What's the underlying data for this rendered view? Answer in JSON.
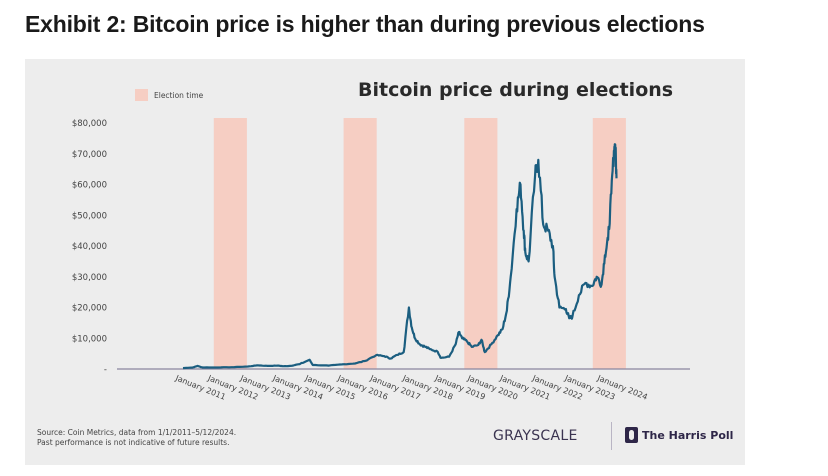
{
  "page": {
    "exhibit_title": "Exhibit 2: Bitcoin price is higher than during previous elections"
  },
  "footer": {
    "source_line1": "Source: Coin Metrics, data from 1/1/2011–5/12/2024.",
    "source_line2": "Past performance is not indicative of future results.",
    "logo_grayscale": "GRAYSCALE",
    "logo_harris": "The Harris Poll"
  },
  "colors": {
    "line": "#1b5e80",
    "election_band": "#f6cec3",
    "panel_bg": "#ededed",
    "axis": "#8a86a0"
  },
  "chart_data": {
    "type": "line",
    "title": "Bitcoin price during elections",
    "xlabel": "",
    "ylabel": "",
    "legend": [
      {
        "label": "Election time",
        "color": "#f6cec3"
      }
    ],
    "legend_position": "top-left",
    "grid": false,
    "ylim": [
      0,
      80000
    ],
    "xlim": [
      2009.9,
      2027.5
    ],
    "y_ticks": [
      0,
      10000,
      20000,
      30000,
      40000,
      50000,
      60000,
      70000,
      80000
    ],
    "y_tick_labels": [
      "-",
      "$10,000",
      "$20,000",
      "$30,000",
      "$40,000",
      "$50,000",
      "$60,000",
      "$70,000",
      "$80,000"
    ],
    "x_ticks": [
      2011,
      2012,
      2013,
      2014,
      2015,
      2016,
      2017,
      2018,
      2019,
      2020,
      2021,
      2022,
      2023,
      2024
    ],
    "x_tick_labels": [
      "January 2011",
      "January 2012",
      "January 2013",
      "January 2014",
      "January 2015",
      "January 2016",
      "January 2017",
      "January 2018",
      "January 2019",
      "January 2020",
      "January 2021",
      "January 2022",
      "January 2023",
      "January 2024"
    ],
    "election_periods": [
      [
        2011.95,
        2012.97
      ],
      [
        2015.95,
        2016.97
      ],
      [
        2019.67,
        2020.69
      ],
      [
        2023.63,
        2024.65
      ]
    ],
    "series": [
      {
        "name": "Bitcoin price (USD)",
        "x": [
          2011.0,
          2011.3,
          2011.45,
          2011.6,
          2012.0,
          2012.5,
          2013.0,
          2013.3,
          2013.6,
          2013.92,
          2014.1,
          2014.3,
          2014.6,
          2014.9,
          2015.0,
          2015.5,
          2015.9,
          2016.3,
          2016.6,
          2016.95,
          2017.2,
          2017.4,
          2017.6,
          2017.8,
          2017.96,
          2018.05,
          2018.15,
          2018.3,
          2018.45,
          2018.6,
          2018.85,
          2018.95,
          2019.2,
          2019.4,
          2019.5,
          2019.6,
          2019.75,
          2019.9,
          2020.1,
          2020.2,
          2020.3,
          2020.5,
          2020.7,
          2020.85,
          2020.98,
          2021.1,
          2021.28,
          2021.4,
          2021.5,
          2021.55,
          2021.65,
          2021.85,
          2021.95,
          2022.1,
          2022.25,
          2022.4,
          2022.45,
          2022.6,
          2022.8,
          2022.9,
          2023.0,
          2023.2,
          2023.4,
          2023.6,
          2023.75,
          2023.9,
          2024.0,
          2024.1,
          2024.2,
          2024.28,
          2024.32,
          2024.36
        ],
        "y": [
          300,
          500,
          1000,
          500,
          500,
          600,
          800,
          1200,
          1000,
          1100,
          900,
          1000,
          1600,
          3000,
          1300,
          1100,
          1500,
          1800,
          2600,
          4500,
          4200,
          3400,
          4600,
          5500,
          20000,
          13500,
          10000,
          8000,
          7300,
          6500,
          5600,
          3600,
          4000,
          8000,
          12000,
          10000,
          9000,
          7200,
          7800,
          9500,
          5500,
          8000,
          11000,
          13000,
          19000,
          30000,
          52000,
          60000,
          45000,
          38000,
          35000,
          63000,
          68000,
          47000,
          45000,
          40000,
          30000,
          20000,
          19500,
          16500,
          17000,
          24000,
          28000,
          27000,
          30000,
          27500,
          37000,
          42000,
          57000,
          71000,
          73000,
          62000
        ]
      }
    ]
  }
}
